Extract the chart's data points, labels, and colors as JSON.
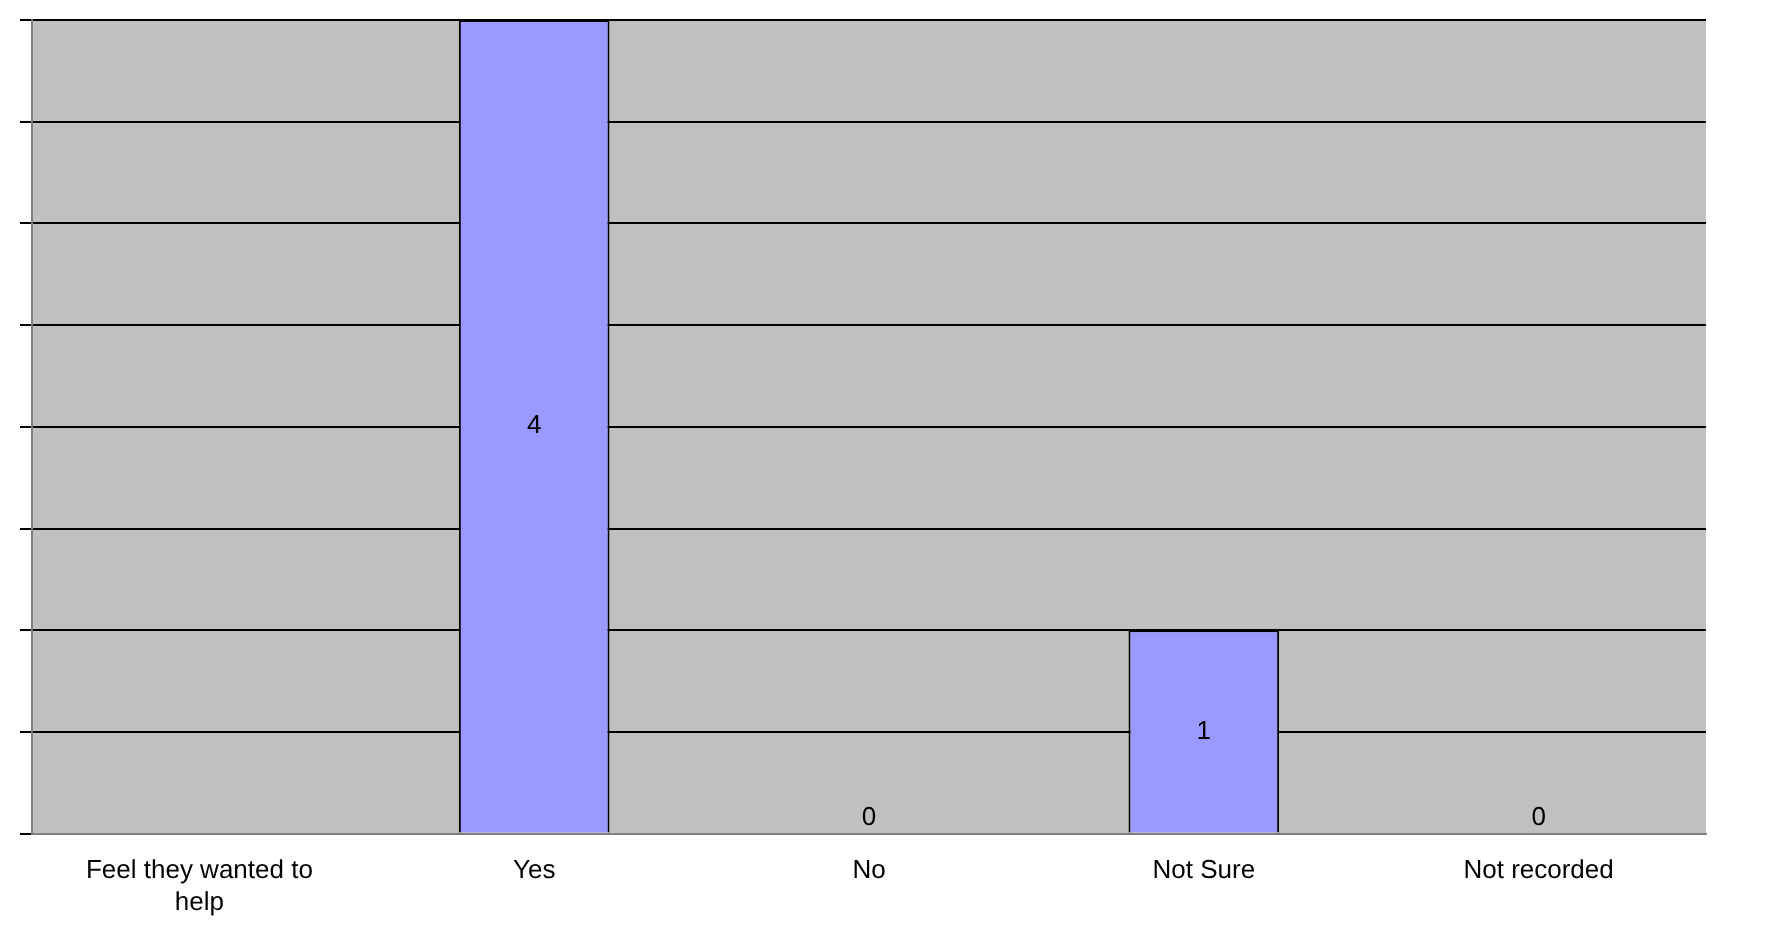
{
  "chart_data": {
    "type": "bar",
    "categories": [
      "Feel they wanted to help",
      "Yes",
      "No",
      "Not Sure",
      "Not recorded"
    ],
    "values": [
      null,
      4,
      0,
      1,
      0
    ],
    "color": "#9999ff",
    "ylim": [
      0,
      4
    ],
    "yticks": [
      {
        "value": 0,
        "label": null
      },
      {
        "value": 0.5,
        "label": null
      },
      {
        "value": 1,
        "label": null
      },
      {
        "value": 1.5,
        "label": null
      },
      {
        "value": 2,
        "label": null
      },
      {
        "value": 2.5,
        "label": null
      },
      {
        "value": 3,
        "label": null
      },
      {
        "value": 3.5,
        "label": null
      },
      {
        "value": 4,
        "label": null
      }
    ],
    "grid": "y",
    "tick_labels": "x",
    "data_labels": true,
    "legend": false
  }
}
